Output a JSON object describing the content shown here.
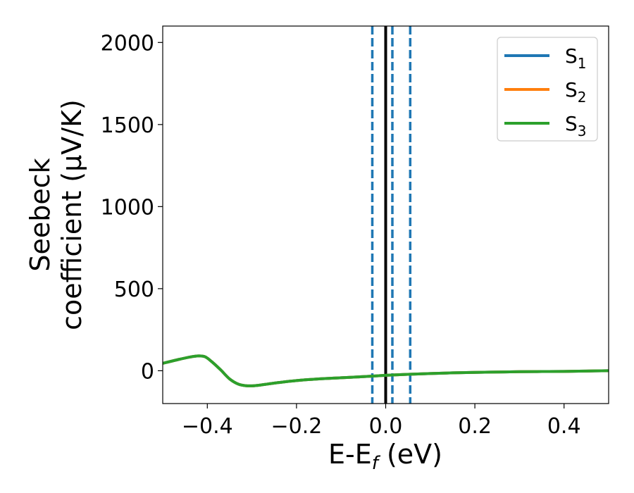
{
  "chart_data": {
    "type": "line",
    "title": "",
    "xlabel": {
      "main": "E-E",
      "sub": "f",
      "unit": " (eV)"
    },
    "ylabel": {
      "line1": "Seebeck",
      "line2": "coefficient  (μV/K)"
    },
    "xlim": [
      -0.5,
      0.5
    ],
    "ylim": [
      -200,
      2100
    ],
    "xticks": [
      -0.4,
      -0.2,
      0.0,
      0.2,
      0.4
    ],
    "xtick_labels": [
      "−0.4",
      "−0.2",
      "0.0",
      "0.2",
      "0.4"
    ],
    "yticks": [
      0,
      500,
      1000,
      1500,
      2000
    ],
    "ytick_labels": [
      "0",
      "500",
      "1000",
      "1500",
      "2000"
    ],
    "grid": false,
    "legend_position": "top-right",
    "series": [
      {
        "name": "S",
        "sub": "1",
        "color": "#1f77b4",
        "x": [
          -0.5,
          -0.47,
          -0.44,
          -0.42,
          -0.405,
          -0.39,
          -0.37,
          -0.35,
          -0.33,
          -0.31,
          -0.29,
          -0.27,
          -0.24,
          -0.2,
          -0.15,
          -0.1,
          -0.05,
          0.0,
          0.05,
          0.1,
          0.15,
          0.2,
          0.25,
          0.3,
          0.35,
          0.4,
          0.45,
          0.5
        ],
        "y": [
          45,
          65,
          83,
          90,
          85,
          55,
          5,
          -50,
          -82,
          -92,
          -90,
          -83,
          -72,
          -60,
          -50,
          -43,
          -36,
          -28,
          -22,
          -17,
          -13,
          -10,
          -8,
          -6,
          -5,
          -4,
          -2,
          0
        ]
      },
      {
        "name": "S",
        "sub": "2",
        "color": "#ff7f0e",
        "x": [
          -0.5,
          -0.47,
          -0.44,
          -0.42,
          -0.405,
          -0.39,
          -0.37,
          -0.35,
          -0.33,
          -0.31,
          -0.29,
          -0.27,
          -0.24,
          -0.2,
          -0.15,
          -0.1,
          -0.05,
          0.0,
          0.05,
          0.1,
          0.15,
          0.2,
          0.25,
          0.3,
          0.35,
          0.4,
          0.45,
          0.5
        ],
        "y": [
          45,
          65,
          83,
          90,
          85,
          55,
          5,
          -50,
          -82,
          -92,
          -90,
          -83,
          -72,
          -60,
          -50,
          -43,
          -36,
          -28,
          -22,
          -17,
          -13,
          -10,
          -8,
          -6,
          -5,
          -4,
          -2,
          0
        ]
      },
      {
        "name": "S",
        "sub": "3",
        "color": "#2ca02c",
        "x": [
          -0.5,
          -0.47,
          -0.44,
          -0.42,
          -0.405,
          -0.39,
          -0.37,
          -0.35,
          -0.33,
          -0.31,
          -0.29,
          -0.27,
          -0.24,
          -0.2,
          -0.15,
          -0.1,
          -0.05,
          0.0,
          0.05,
          0.1,
          0.15,
          0.2,
          0.25,
          0.3,
          0.35,
          0.4,
          0.45,
          0.5
        ],
        "y": [
          45,
          65,
          83,
          90,
          85,
          55,
          5,
          -50,
          -82,
          -92,
          -90,
          -83,
          -72,
          -60,
          -50,
          -43,
          -36,
          -28,
          -22,
          -17,
          -13,
          -10,
          -8,
          -6,
          -5,
          -4,
          -2,
          0
        ]
      }
    ],
    "vertical_lines": [
      {
        "x": -0.03,
        "style": "dashed",
        "color": "#1f77b4"
      },
      {
        "x": 0.0,
        "style": "solid",
        "color": "#000000"
      },
      {
        "x": 0.015,
        "style": "dashed",
        "color": "#1f77b4"
      },
      {
        "x": 0.055,
        "style": "dashed",
        "color": "#1f77b4"
      }
    ]
  }
}
